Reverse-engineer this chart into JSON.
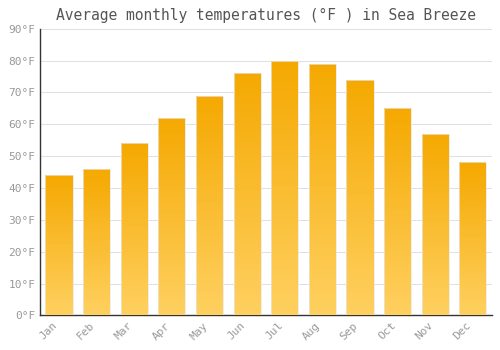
{
  "title": "Average monthly temperatures (°F ) in Sea Breeze",
  "months": [
    "Jan",
    "Feb",
    "Mar",
    "Apr",
    "May",
    "Jun",
    "Jul",
    "Aug",
    "Sep",
    "Oct",
    "Nov",
    "Dec"
  ],
  "values": [
    44,
    46,
    54,
    62,
    69,
    76,
    80,
    79,
    74,
    65,
    57,
    48
  ],
  "bar_color_bottom": "#FFD060",
  "bar_color_top": "#F5A800",
  "ylim": [
    0,
    90
  ],
  "yticks": [
    0,
    10,
    20,
    30,
    40,
    50,
    60,
    70,
    80,
    90
  ],
  "ytick_labels": [
    "0°F",
    "10°F",
    "20°F",
    "30°F",
    "40°F",
    "50°F",
    "60°F",
    "70°F",
    "80°F",
    "90°F"
  ],
  "background_color": "#ffffff",
  "grid_color": "#e0e0e0",
  "title_fontsize": 10.5,
  "tick_fontsize": 8,
  "font_family": "monospace",
  "bar_edge_color": "#cccccc",
  "bar_width": 0.72
}
